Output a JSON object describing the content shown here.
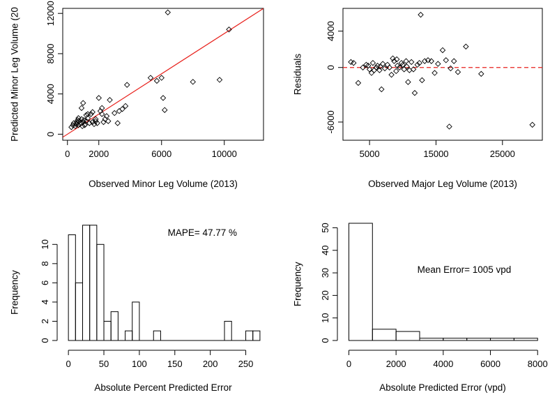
{
  "chart_data": [
    {
      "type": "scatter",
      "xlabel": "Observed Minor Leg Volume (2013)",
      "ylabel": "Predicted Minor Leg Volume (20",
      "xlim": [
        -300,
        12500
      ],
      "ylim": [
        -600,
        12500
      ],
      "xticks": [
        0,
        2000,
        6000,
        10000
      ],
      "yticks": [
        0,
        4000,
        8000,
        12000
      ],
      "fit_line": {
        "from": [
          -300,
          -300
        ],
        "to": [
          12500,
          12500
        ],
        "color": "#e8211c"
      },
      "points": [
        [
          250,
          700
        ],
        [
          350,
          900
        ],
        [
          500,
          800
        ],
        [
          550,
          1000
        ],
        [
          600,
          1200
        ],
        [
          650,
          1400
        ],
        [
          700,
          900
        ],
        [
          750,
          1300
        ],
        [
          800,
          1000
        ],
        [
          850,
          1100
        ],
        [
          900,
          1500
        ],
        [
          950,
          800
        ],
        [
          1000,
          1200
        ],
        [
          1050,
          1400
        ],
        [
          1100,
          900
        ],
        [
          1150,
          1000
        ],
        [
          1200,
          1300
        ],
        [
          1300,
          1600
        ],
        [
          1400,
          1100
        ],
        [
          1500,
          2000
        ],
        [
          1600,
          1200
        ],
        [
          1700,
          1000
        ],
        [
          1800,
          1300
        ],
        [
          1900,
          1100
        ],
        [
          2000,
          3600
        ],
        [
          2100,
          2300
        ],
        [
          2200,
          2000
        ],
        [
          2300,
          1200
        ],
        [
          2400,
          1500
        ],
        [
          2500,
          1800
        ],
        [
          2600,
          1300
        ],
        [
          2700,
          3400
        ],
        [
          3000,
          2100
        ],
        [
          3200,
          1100
        ],
        [
          3300,
          2300
        ],
        [
          3500,
          2500
        ],
        [
          3700,
          2800
        ],
        [
          3800,
          4900
        ],
        [
          900,
          2600
        ],
        [
          1000,
          3100
        ],
        [
          1300,
          2000
        ],
        [
          5300,
          5600
        ],
        [
          5700,
          5300
        ],
        [
          6000,
          5600
        ],
        [
          6100,
          3600
        ],
        [
          6200,
          2400
        ],
        [
          6400,
          12100
        ],
        [
          8000,
          5200
        ],
        [
          9700,
          5400
        ],
        [
          10300,
          10400
        ],
        [
          400,
          1100
        ],
        [
          700,
          1600
        ],
        [
          1200,
          1900
        ],
        [
          1600,
          2200
        ],
        [
          2200,
          2600
        ],
        [
          1800,
          1500
        ]
      ]
    },
    {
      "type": "scatter",
      "xlabel": "Observed Major Leg Volume (2013)",
      "ylabel": "Residuals",
      "xlim": [
        1000,
        31000
      ],
      "ylim": [
        -8000,
        6500
      ],
      "xticks": [
        5000,
        15000,
        25000
      ],
      "yticks": [
        -6000,
        0,
        4000
      ],
      "zero_line": {
        "y": 0,
        "color": "#e8211c",
        "style": "dashed"
      },
      "points": [
        [
          2200,
          600
        ],
        [
          2600,
          500
        ],
        [
          3300,
          -1700
        ],
        [
          4000,
          0
        ],
        [
          4500,
          300
        ],
        [
          4800,
          200
        ],
        [
          5000,
          -200
        ],
        [
          5300,
          -600
        ],
        [
          5500,
          500
        ],
        [
          5700,
          -300
        ],
        [
          6000,
          0
        ],
        [
          6200,
          200
        ],
        [
          6500,
          -300
        ],
        [
          6800,
          -2400
        ],
        [
          7000,
          400
        ],
        [
          7300,
          -100
        ],
        [
          7700,
          300
        ],
        [
          8000,
          0
        ],
        [
          8300,
          -800
        ],
        [
          8500,
          1000
        ],
        [
          8700,
          700
        ],
        [
          9000,
          -400
        ],
        [
          9200,
          200
        ],
        [
          9500,
          0
        ],
        [
          9800,
          500
        ],
        [
          10000,
          300
        ],
        [
          10200,
          -200
        ],
        [
          10500,
          700
        ],
        [
          10800,
          -1600
        ],
        [
          11000,
          -300
        ],
        [
          11300,
          600
        ],
        [
          11600,
          -200
        ],
        [
          11800,
          -2800
        ],
        [
          12200,
          300
        ],
        [
          12500,
          500
        ],
        [
          12700,
          5800
        ],
        [
          12900,
          -1400
        ],
        [
          13300,
          700
        ],
        [
          13800,
          800
        ],
        [
          14300,
          700
        ],
        [
          14800,
          -600
        ],
        [
          15300,
          400
        ],
        [
          16000,
          1900
        ],
        [
          16500,
          800
        ],
        [
          17000,
          -6500
        ],
        [
          17200,
          -100
        ],
        [
          17700,
          700
        ],
        [
          18300,
          -500
        ],
        [
          19500,
          2300
        ],
        [
          21800,
          -700
        ],
        [
          29500,
          -6300
        ],
        [
          6600,
          100
        ],
        [
          9100,
          900
        ],
        [
          10600,
          100
        ]
      ]
    },
    {
      "type": "bar",
      "xlabel": "Absolute Percent Predicted Error",
      "ylabel": "Frequency",
      "xlim": [
        -8,
        275
      ],
      "ylim": [
        0,
        12.2
      ],
      "xticks": [
        0,
        50,
        100,
        150,
        200,
        250
      ],
      "yticks": [
        0,
        2,
        4,
        6,
        8,
        10
      ],
      "bin_width": 10,
      "bins": [
        0,
        10,
        20,
        30,
        40,
        50,
        60,
        70,
        80,
        90,
        120,
        220,
        250,
        260
      ],
      "values": [
        11,
        6,
        12,
        12,
        10,
        2,
        3,
        0,
        1,
        4,
        1,
        2,
        1,
        1
      ],
      "annotation": "MAPE= 47.77 %",
      "annotation_pos": [
        140,
        10.9
      ]
    },
    {
      "type": "bar",
      "xlabel": "Absolute Predicted Error (vpd)",
      "ylabel": "Frequency",
      "xlim": [
        -250,
        8200
      ],
      "ylim": [
        0,
        52
      ],
      "xticks": [
        0,
        2000,
        4000,
        6000,
        8000
      ],
      "yticks": [
        0,
        10,
        20,
        30,
        40,
        50
      ],
      "bin_width": 1000,
      "bins": [
        0,
        1000,
        2000,
        3000,
        4000,
        5000,
        6000,
        7000
      ],
      "values": [
        52,
        5,
        4,
        1,
        1,
        1,
        1,
        1
      ],
      "annotation": "Mean Error= 1005 vpd",
      "annotation_pos": [
        2900,
        30
      ]
    }
  ]
}
